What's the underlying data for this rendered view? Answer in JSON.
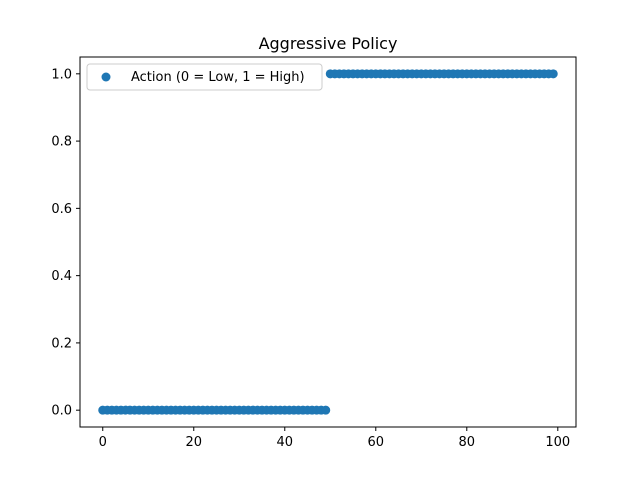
{
  "chart_data": {
    "type": "scatter",
    "title": "Aggressive Policy",
    "xlabel": "",
    "ylabel": "",
    "xlim": [
      -5,
      104
    ],
    "ylim": [
      -0.05,
      1.05
    ],
    "x_ticks": [
      0,
      20,
      40,
      60,
      80,
      100
    ],
    "x_tick_labels": [
      "0",
      "20",
      "40",
      "60",
      "80",
      "100"
    ],
    "y_ticks": [
      0.0,
      0.2,
      0.4,
      0.6,
      0.8,
      1.0
    ],
    "y_tick_labels": [
      "0.0",
      "0.2",
      "0.4",
      "0.6",
      "0.8",
      "1.0"
    ],
    "grid": false,
    "legend_position": "top-left",
    "series": [
      {
        "name": "Action (0 = Low, 1 = High)",
        "color": "#1f77b4",
        "x": [
          0,
          1,
          2,
          3,
          4,
          5,
          6,
          7,
          8,
          9,
          10,
          11,
          12,
          13,
          14,
          15,
          16,
          17,
          18,
          19,
          20,
          21,
          22,
          23,
          24,
          25,
          26,
          27,
          28,
          29,
          30,
          31,
          32,
          33,
          34,
          35,
          36,
          37,
          38,
          39,
          40,
          41,
          42,
          43,
          44,
          45,
          46,
          47,
          48,
          49,
          50,
          51,
          52,
          53,
          54,
          55,
          56,
          57,
          58,
          59,
          60,
          61,
          62,
          63,
          64,
          65,
          66,
          67,
          68,
          69,
          70,
          71,
          72,
          73,
          74,
          75,
          76,
          77,
          78,
          79,
          80,
          81,
          82,
          83,
          84,
          85,
          86,
          87,
          88,
          89,
          90,
          91,
          92,
          93,
          94,
          95,
          96,
          97,
          98,
          99
        ],
        "y": [
          0,
          0,
          0,
          0,
          0,
          0,
          0,
          0,
          0,
          0,
          0,
          0,
          0,
          0,
          0,
          0,
          0,
          0,
          0,
          0,
          0,
          0,
          0,
          0,
          0,
          0,
          0,
          0,
          0,
          0,
          0,
          0,
          0,
          0,
          0,
          0,
          0,
          0,
          0,
          0,
          0,
          0,
          0,
          0,
          0,
          0,
          0,
          0,
          0,
          0,
          1,
          1,
          1,
          1,
          1,
          1,
          1,
          1,
          1,
          1,
          1,
          1,
          1,
          1,
          1,
          1,
          1,
          1,
          1,
          1,
          1,
          1,
          1,
          1,
          1,
          1,
          1,
          1,
          1,
          1,
          1,
          1,
          1,
          1,
          1,
          1,
          1,
          1,
          1,
          1,
          1,
          1,
          1,
          1,
          1,
          1,
          1,
          1,
          1,
          1
        ]
      }
    ]
  }
}
